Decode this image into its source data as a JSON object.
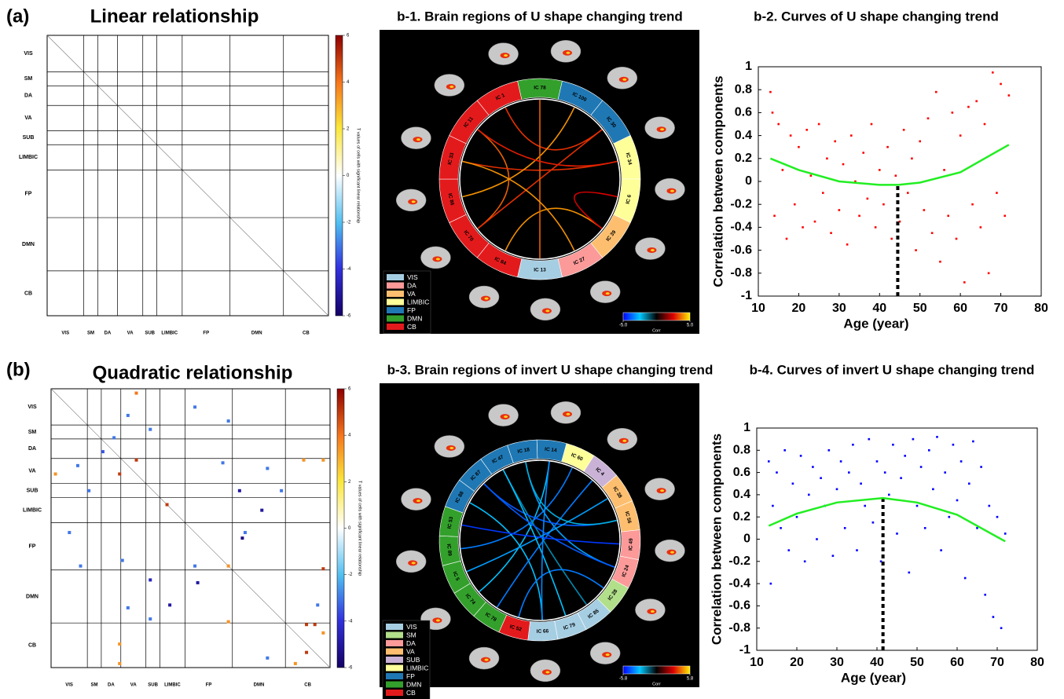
{
  "panel_labels": [
    "(a)",
    "(b)"
  ],
  "chart_data": [
    {
      "type": "matrix",
      "title": "Linear relationship",
      "size": 100,
      "networks": [
        "VIS",
        "SM",
        "DA",
        "VA",
        "SUB",
        "LIMBIC",
        "FP",
        "DMN",
        "CB"
      ],
      "network_starts": [
        0,
        13,
        18,
        25,
        34,
        39,
        48,
        65,
        84
      ],
      "cells": [],
      "colorbar": {
        "label": "T values of cells with significant linear relationship",
        "lim": [
          -6,
          6
        ],
        "ticks": [
          6,
          4,
          2,
          0,
          -2,
          -4,
          -6
        ]
      }
    },
    {
      "type": "chord",
      "title": "b-1. Brain regions of U shape changing trend",
      "legend": [
        {
          "name": "VIS",
          "color": "#a6cee3"
        },
        {
          "name": "DA",
          "color": "#fb9a99"
        },
        {
          "name": "VA",
          "color": "#fdbf6f"
        },
        {
          "name": "LIMBIC",
          "color": "#ffff99"
        },
        {
          "name": "FP",
          "color": "#1f78b4"
        },
        {
          "name": "DMN",
          "color": "#33a02c"
        },
        {
          "name": "CB",
          "color": "#e31a1c"
        }
      ],
      "segments": [
        {
          "label": "IC 78",
          "network": "DMN"
        },
        {
          "label": "IC 100",
          "network": "FP"
        },
        {
          "label": "IC 30",
          "network": "FP"
        },
        {
          "label": "IC 34",
          "network": "LIMBIC"
        },
        {
          "label": "IC 6",
          "network": "LIMBIC"
        },
        {
          "label": "IC 39",
          "network": "VA"
        },
        {
          "label": "IC 27",
          "network": "DA"
        },
        {
          "label": "IC 13",
          "network": "VIS"
        },
        {
          "label": "IC 84",
          "network": "CB"
        },
        {
          "label": "IC 70",
          "network": "CB"
        },
        {
          "label": "IC 86",
          "network": "CB"
        },
        {
          "label": "IC 33",
          "network": "CB"
        },
        {
          "label": "IC 11",
          "network": "CB"
        },
        {
          "label": "IC 1",
          "network": "CB"
        }
      ],
      "links": [
        [
          13,
          2,
          3
        ],
        [
          12,
          9,
          3.5
        ],
        [
          11,
          3,
          3
        ],
        [
          10,
          1,
          4
        ],
        [
          9,
          2,
          3
        ],
        [
          8,
          5,
          4
        ],
        [
          0,
          7,
          3.5
        ],
        [
          4,
          5,
          2.5
        ],
        [
          11,
          6,
          4
        ],
        [
          12,
          3,
          2.8
        ]
      ],
      "colorbar": {
        "label": "Corr",
        "lim": [
          -5,
          5
        ],
        "ticks": [
          {
            "value": -5,
            "label": "-5.0"
          },
          {
            "value": 5,
            "label": "5.0"
          }
        ]
      }
    },
    {
      "type": "scatter",
      "title": "b-2. Curves of U shape changing trend",
      "xlabel": "Age (year)",
      "ylabel": "Correlation between components",
      "xlim": [
        10,
        80
      ],
      "xticks": [
        10,
        20,
        30,
        40,
        50,
        60,
        70,
        80
      ],
      "ylim": [
        -1,
        1
      ],
      "yticks": [
        -1,
        -0.8,
        -0.6,
        -0.4,
        -0.2,
        0,
        0.2,
        0.4,
        0.6,
        0.8,
        1
      ],
      "series": [
        {
          "color": "#ff0000",
          "x": [
            13,
            13.5,
            14,
            15,
            16,
            17,
            18,
            19,
            20,
            21,
            22,
            23,
            24,
            25,
            26,
            27,
            28,
            29,
            30,
            31,
            32,
            33,
            34,
            35,
            36,
            37,
            38,
            39,
            40,
            41,
            42,
            43,
            44,
            45,
            46,
            47,
            48,
            49,
            50,
            51,
            52,
            53,
            54,
            55,
            56,
            57,
            58,
            59,
            60,
            61,
            62,
            63,
            64,
            65,
            66,
            67,
            68,
            69,
            70,
            71,
            72
          ],
          "values": [
            0.78,
            0.6,
            -0.3,
            0.5,
            0.1,
            -0.5,
            0.4,
            -0.2,
            0.3,
            -0.4,
            0.45,
            0.05,
            -0.35,
            0.5,
            -0.1,
            0.2,
            -0.45,
            0.35,
            -0.25,
            0.15,
            -0.55,
            0.4,
            0,
            -0.3,
            0.25,
            -0.15,
            0.5,
            -0.4,
            0.1,
            -0.2,
            0.3,
            -0.5,
            0.05,
            -0.35,
            0.45,
            -0.1,
            0.2,
            -0.6,
            0.35,
            -0.25,
            0.55,
            -0.45,
            0.78,
            -0.7,
            0.1,
            -0.3,
            0.6,
            -0.5,
            0.4,
            -0.88,
            0.65,
            -0.2,
            0.7,
            -0.4,
            0.5,
            -0.8,
            0.95,
            -0.1,
            0.85,
            -0.3,
            0.75
          ]
        }
      ],
      "fit": {
        "color": "#22ee22",
        "x": [
          13,
          20,
          30,
          40,
          44.5,
          50,
          60,
          72
        ],
        "values": [
          0.2,
          0.1,
          0,
          -0.03,
          -0.03,
          -0.01,
          0.08,
          0.32
        ]
      },
      "vline": {
        "x": 44.5,
        "top": -0.03
      }
    },
    {
      "type": "matrix",
      "title": "Quadratic relationship",
      "size": 100,
      "networks": [
        "VIS",
        "SM",
        "DA",
        "VA",
        "SUB",
        "LIMBIC",
        "FP",
        "DMN",
        "CB"
      ],
      "network_starts": [
        0,
        13,
        18,
        25,
        34,
        39,
        48,
        65,
        84
      ],
      "cells": [
        [
          1,
          30,
          4
        ],
        [
          9,
          27,
          -3
        ],
        [
          6,
          51,
          -3
        ],
        [
          14,
          35,
          -3
        ],
        [
          11,
          63,
          -3
        ],
        [
          17,
          22,
          -3
        ],
        [
          22,
          18,
          -3.5
        ],
        [
          25,
          30,
          5
        ],
        [
          25,
          90,
          3.5
        ],
        [
          25,
          97,
          3.5
        ],
        [
          26,
          61,
          -3
        ],
        [
          27,
          9,
          -3
        ],
        [
          28,
          77,
          -3
        ],
        [
          30,
          1,
          3.5
        ],
        [
          30,
          24,
          5
        ],
        [
          36,
          13,
          -3
        ],
        [
          36,
          67,
          -5
        ],
        [
          36,
          82,
          -3
        ],
        [
          41,
          41,
          5
        ],
        [
          43,
          75,
          -5
        ],
        [
          51,
          6,
          -3
        ],
        [
          51,
          69,
          -3
        ],
        [
          53,
          68,
          -5.5
        ],
        [
          63,
          10,
          -3
        ],
        [
          61,
          25,
          -3
        ],
        [
          63,
          51,
          -3
        ],
        [
          63,
          63,
          3.5
        ],
        [
          64,
          97,
          5
        ],
        [
          68,
          35,
          -4.5
        ],
        [
          69,
          52,
          -5
        ],
        [
          77,
          42,
          -5
        ],
        [
          77,
          95,
          -3
        ],
        [
          78,
          27,
          -3
        ],
        [
          82,
          35,
          -3
        ],
        [
          83,
          63,
          3.5
        ],
        [
          84,
          91,
          5
        ],
        [
          84,
          94,
          5
        ],
        [
          87,
          97,
          3.5
        ],
        [
          91,
          24,
          3.5
        ],
        [
          94,
          91,
          5
        ],
        [
          96,
          77,
          -3
        ],
        [
          98,
          24,
          3.5
        ],
        [
          98,
          87,
          3.5
        ]
      ],
      "colorbar": {
        "label": "T values of cells with significant linear relationship",
        "lim": [
          -6,
          6
        ],
        "ticks": [
          6,
          4,
          2,
          0,
          -2,
          -4,
          -6
        ]
      }
    },
    {
      "type": "chord",
      "title": "b-3. Brain regions of invert U shape changing trend",
      "legend": [
        {
          "name": "VIS",
          "color": "#a6cee3"
        },
        {
          "name": "SM",
          "color": "#b2df8a"
        },
        {
          "name": "DA",
          "color": "#fb9a99"
        },
        {
          "name": "VA",
          "color": "#fdbf6f"
        },
        {
          "name": "SUB",
          "color": "#cab2d6"
        },
        {
          "name": "LIMBIC",
          "color": "#ffff99"
        },
        {
          "name": "FP",
          "color": "#1f78b4"
        },
        {
          "name": "DMN",
          "color": "#33a02c"
        },
        {
          "name": "CB",
          "color": "#e31a1c"
        }
      ],
      "segments": [
        {
          "label": "IC 14",
          "network": "FP"
        },
        {
          "label": "IC 60",
          "network": "LIMBIC"
        },
        {
          "label": "IC 4",
          "network": "SUB"
        },
        {
          "label": "IC 38",
          "network": "VA"
        },
        {
          "label": "IC 56",
          "network": "VA"
        },
        {
          "label": "IC 49",
          "network": "DA"
        },
        {
          "label": "IC 24",
          "network": "DA"
        },
        {
          "label": "IC 28",
          "network": "SM"
        },
        {
          "label": "IC 85",
          "network": "VIS"
        },
        {
          "label": "IC 79",
          "network": "VIS"
        },
        {
          "label": "IC 66",
          "network": "VIS"
        },
        {
          "label": "IC 52",
          "network": "CB"
        },
        {
          "label": "IC 78",
          "network": "DMN"
        },
        {
          "label": "IC 74",
          "network": "DMN"
        },
        {
          "label": "IC 5",
          "network": "DMN"
        },
        {
          "label": "IC 89",
          "network": "DMN"
        },
        {
          "label": "IC 53",
          "network": "DMN"
        },
        {
          "label": "IC 88",
          "network": "FP"
        },
        {
          "label": "IC 87",
          "network": "FP"
        },
        {
          "label": "IC 47",
          "network": "FP"
        },
        {
          "label": "IC 18",
          "network": "FP"
        }
      ],
      "links": [
        [
          0,
          13,
          -3
        ],
        [
          1,
          15,
          -4
        ],
        [
          20,
          6,
          -3.5
        ],
        [
          19,
          8,
          -2
        ],
        [
          18,
          4,
          -4.5
        ],
        [
          17,
          10,
          -3
        ],
        [
          2,
          12,
          -4
        ],
        [
          3,
          14,
          -3.5
        ],
        [
          5,
          16,
          -5
        ],
        [
          7,
          11,
          -4
        ],
        [
          9,
          19,
          -3
        ],
        [
          6,
          18,
          -4.5
        ],
        [
          0,
          10,
          -3.8
        ],
        [
          4,
          20,
          -2.5
        ]
      ],
      "colorbar": {
        "label": "Corr",
        "lim": [
          -5.8,
          5.8
        ],
        "ticks": [
          {
            "value": -5.8,
            "label": "-5.8"
          },
          {
            "value": 5.8,
            "label": "5.8"
          }
        ]
      }
    },
    {
      "type": "scatter",
      "title": "b-4. Curves of invert U shape changing trend",
      "xlabel": "Age (year)",
      "ylabel": "Correlation between components",
      "xlim": [
        10,
        80
      ],
      "xticks": [
        10,
        20,
        30,
        40,
        50,
        60,
        70,
        80
      ],
      "ylim": [
        -1,
        1
      ],
      "yticks": [
        -1,
        -0.8,
        -0.6,
        -0.4,
        -0.2,
        0,
        0.2,
        0.4,
        0.6,
        0.8,
        1
      ],
      "series": [
        {
          "color": "#0000ff",
          "x": [
            13,
            13.5,
            14,
            15,
            16,
            17,
            18,
            19,
            20,
            21,
            22,
            23,
            24,
            25,
            26,
            27,
            28,
            29,
            30,
            31,
            32,
            33,
            34,
            35,
            36,
            37,
            38,
            39,
            40,
            41,
            42,
            43,
            44,
            45,
            46,
            47,
            48,
            49,
            50,
            51,
            52,
            53,
            54,
            55,
            56,
            57,
            58,
            59,
            60,
            61,
            62,
            63,
            64,
            65,
            66,
            67,
            68,
            69,
            70,
            71,
            72
          ],
          "values": [
            0.7,
            -0.4,
            0.3,
            0.6,
            0.1,
            0.8,
            -0.1,
            0.5,
            0.2,
            0.75,
            -0.2,
            0.4,
            0.65,
            0,
            0.55,
            0.3,
            0.8,
            -0.15,
            0.45,
            0.7,
            0.1,
            0.6,
            0.85,
            -0.1,
            0.5,
            0.3,
            0.9,
            0.15,
            0.7,
            -0.2,
            0.6,
            0.4,
            0.85,
            0.05,
            0.55,
            0.75,
            -0.3,
            0.9,
            0.3,
            0.65,
            0.1,
            0.8,
            0.45,
            0.92,
            -0.1,
            0.6,
            0.2,
            0.85,
            0.35,
            0.7,
            -0.35,
            0.5,
            0.88,
            0.1,
            0.65,
            -0.5,
            0.3,
            -0.7,
            0.2,
            -0.8,
            0.05
          ]
        }
      ],
      "fit": {
        "color": "#22ee22",
        "x": [
          13,
          20,
          30,
          41.5,
          50,
          60,
          72
        ],
        "values": [
          0.12,
          0.23,
          0.33,
          0.37,
          0.33,
          0.22,
          -0.02
        ]
      },
      "vline": {
        "x": 41.5,
        "top": 0.37
      }
    }
  ]
}
